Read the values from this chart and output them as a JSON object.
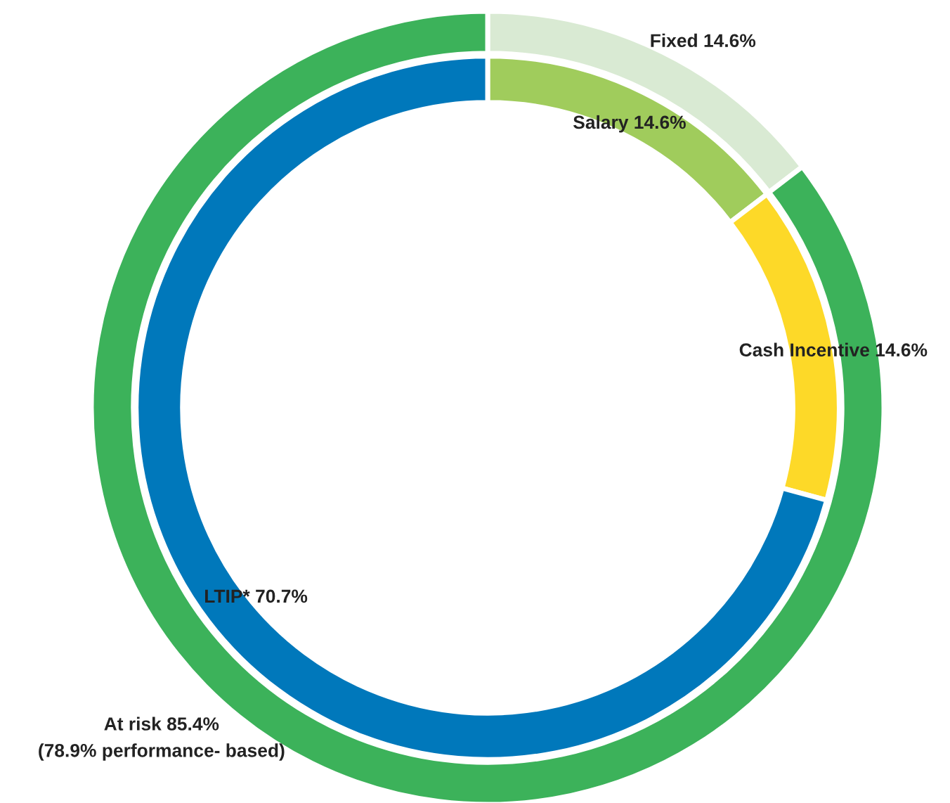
{
  "chart_data": {
    "type": "donut",
    "categories": [
      "Fixed",
      "At risk",
      "Salary",
      "Cash Incentive",
      "LTIP*"
    ],
    "annotations": [
      "(78.9% performance- based)"
    ],
    "series": [
      {
        "values": [
          14.6,
          85.4,
          null,
          null,
          null
        ],
        "colors": [
          "#d9ead3",
          "#3cb25a",
          null,
          null,
          null
        ],
        "value_labels": [
          "14.6%",
          "85.4%",
          null,
          null,
          null
        ]
      },
      {
        "values": [
          null,
          null,
          14.6,
          14.6,
          70.7
        ],
        "colors": [
          null,
          null,
          "#a0cc5c",
          "#fdd928",
          "#0078bb"
        ],
        "value_labels": [
          null,
          null,
          "14.6%",
          "14.6%",
          "70.7%"
        ]
      }
    ]
  }
}
